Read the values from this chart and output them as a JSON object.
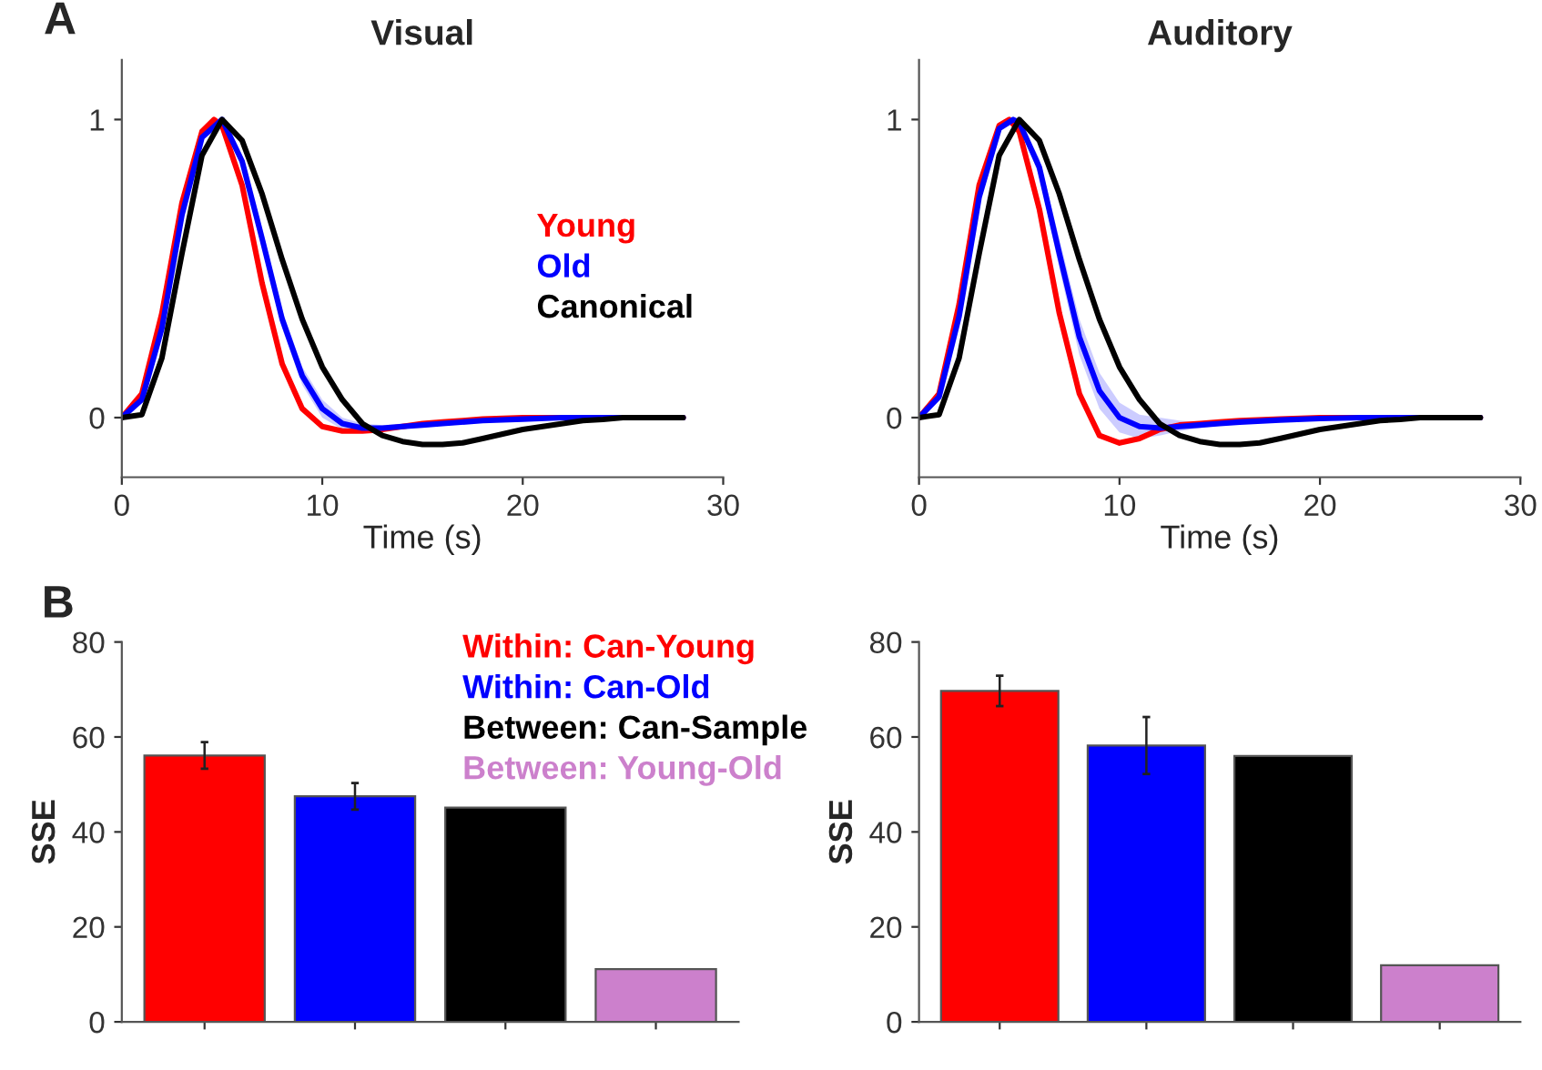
{
  "chart_data": [
    {
      "type": "line",
      "title": "Visual",
      "xlabel": "Time (s)",
      "xlim": [
        0,
        30
      ],
      "xticks": [
        0,
        10,
        20,
        30
      ],
      "ylim": [
        -0.2,
        1.2
      ],
      "yticks": [
        0,
        1
      ],
      "legend": "right",
      "grid": false,
      "annotations": [
        "A"
      ],
      "series": [
        {
          "name": "Young",
          "color": "#ff0000",
          "x": [
            0,
            1,
            2,
            3,
            4,
            4.6,
            5,
            6,
            7,
            8,
            9,
            10,
            11,
            12,
            13,
            14,
            15,
            16,
            17,
            18,
            20,
            28
          ],
          "values": [
            0,
            0.08,
            0.35,
            0.72,
            0.96,
            1.0,
            0.98,
            0.78,
            0.45,
            0.18,
            0.03,
            -0.03,
            -0.045,
            -0.045,
            -0.04,
            -0.03,
            -0.02,
            -0.015,
            -0.01,
            -0.005,
            0,
            0
          ]
        },
        {
          "name": "Old",
          "color": "#0000ff",
          "x": [
            0,
            1,
            2,
            3,
            4,
            5,
            6,
            7,
            8,
            9,
            10,
            11,
            12,
            13,
            14,
            15,
            16,
            18,
            20,
            22,
            28
          ],
          "values": [
            0,
            0.06,
            0.3,
            0.68,
            0.94,
            1.0,
            0.86,
            0.6,
            0.33,
            0.14,
            0.03,
            -0.02,
            -0.035,
            -0.035,
            -0.03,
            -0.025,
            -0.02,
            -0.01,
            -0.005,
            0,
            0
          ],
          "lower": [
            0,
            0.05,
            0.28,
            0.66,
            0.93,
            0.99,
            0.84,
            0.57,
            0.3,
            0.11,
            0.0,
            -0.04,
            -0.05,
            -0.045,
            -0.04,
            -0.03,
            -0.025,
            -0.015,
            -0.008,
            0,
            0
          ],
          "upper": [
            0,
            0.07,
            0.32,
            0.7,
            0.95,
            1.0,
            0.88,
            0.63,
            0.36,
            0.17,
            0.06,
            0.0,
            -0.02,
            -0.025,
            -0.02,
            -0.02,
            -0.015,
            -0.005,
            -0.002,
            0,
            0
          ]
        },
        {
          "name": "Canonical",
          "color": "#000000",
          "x": [
            0,
            1,
            2,
            3,
            4,
            5,
            6,
            7,
            8,
            9,
            10,
            11,
            12,
            13,
            14,
            15,
            16,
            17,
            18,
            19,
            20,
            21,
            22,
            23,
            24,
            25,
            28
          ],
          "values": [
            0,
            0.01,
            0.2,
            0.55,
            0.88,
            1.0,
            0.93,
            0.75,
            0.53,
            0.33,
            0.17,
            0.06,
            -0.02,
            -0.06,
            -0.08,
            -0.09,
            -0.09,
            -0.085,
            -0.07,
            -0.055,
            -0.04,
            -0.03,
            -0.02,
            -0.01,
            -0.006,
            0,
            0
          ]
        }
      ]
    },
    {
      "type": "line",
      "title": "Auditory",
      "xlabel": "Time (s)",
      "xlim": [
        0,
        30
      ],
      "xticks": [
        0,
        10,
        20,
        30
      ],
      "ylim": [
        -0.2,
        1.2
      ],
      "yticks": [
        0,
        1
      ],
      "grid": false,
      "series": [
        {
          "color": "#ff0000",
          "x": [
            0,
            1,
            2,
            3,
            4,
            4.5,
            5,
            6,
            7,
            8,
            9,
            10,
            11,
            12,
            13,
            14,
            15,
            16,
            18,
            20,
            28
          ],
          "values": [
            0,
            0.08,
            0.38,
            0.78,
            0.98,
            1.0,
            0.96,
            0.7,
            0.35,
            0.08,
            -0.06,
            -0.085,
            -0.07,
            -0.04,
            -0.025,
            -0.02,
            -0.015,
            -0.01,
            -0.005,
            0,
            0
          ]
        },
        {
          "color": "#0000ff",
          "x": [
            0,
            1,
            2,
            3,
            4,
            4.7,
            5,
            6,
            7,
            8,
            9,
            10,
            11,
            12,
            13,
            14,
            15,
            16,
            18,
            20,
            22,
            28
          ],
          "values": [
            0,
            0.07,
            0.34,
            0.74,
            0.97,
            1.0,
            0.99,
            0.84,
            0.55,
            0.27,
            0.09,
            0.0,
            -0.03,
            -0.035,
            -0.03,
            -0.025,
            -0.02,
            -0.015,
            -0.008,
            -0.003,
            0,
            0
          ],
          "lower": [
            0,
            0.06,
            0.32,
            0.72,
            0.96,
            0.99,
            0.98,
            0.81,
            0.5,
            0.21,
            0.03,
            -0.05,
            -0.07,
            -0.06,
            -0.045,
            -0.035,
            -0.025,
            -0.02,
            -0.01,
            -0.005,
            0,
            0
          ],
          "upper": [
            0,
            0.08,
            0.36,
            0.76,
            0.98,
            1.0,
            1.0,
            0.87,
            0.6,
            0.33,
            0.15,
            0.05,
            0.01,
            0.0,
            -0.01,
            -0.015,
            -0.015,
            -0.01,
            -0.006,
            -0.001,
            0,
            0
          ]
        },
        {
          "color": "#000000",
          "x": [
            0,
            1,
            2,
            3,
            4,
            5,
            6,
            7,
            8,
            9,
            10,
            11,
            12,
            13,
            14,
            15,
            16,
            17,
            18,
            19,
            20,
            21,
            22,
            23,
            24,
            25,
            28
          ],
          "values": [
            0,
            0.01,
            0.2,
            0.55,
            0.88,
            1.0,
            0.93,
            0.75,
            0.53,
            0.33,
            0.17,
            0.06,
            -0.02,
            -0.06,
            -0.08,
            -0.09,
            -0.09,
            -0.085,
            -0.07,
            -0.055,
            -0.04,
            -0.03,
            -0.02,
            -0.01,
            -0.006,
            0,
            0
          ]
        }
      ]
    },
    {
      "type": "bar",
      "ylabel": "SSE",
      "categories": [
        null,
        null,
        null,
        null
      ],
      "ylim": [
        0,
        80
      ],
      "yticks": [
        0,
        20,
        40,
        60,
        80
      ],
      "legend": "top right",
      "grid": false,
      "annotations": [
        "B"
      ],
      "series": [
        {
          "name": "Within: Can-Young",
          "color": "#ff0000",
          "values": [
            56.1,
            null,
            null,
            null
          ],
          "errors": [
            2.8,
            null,
            null,
            null
          ]
        },
        {
          "name": "Within: Can-Old",
          "color": "#0000ff",
          "values": [
            null,
            47.5,
            null,
            null
          ],
          "errors": [
            null,
            2.8,
            null,
            null
          ]
        },
        {
          "name": "Between: Can-Sample",
          "color": "#000000",
          "values": [
            null,
            null,
            45.1,
            null
          ]
        },
        {
          "name": "Between: Young-Old",
          "color": "#cc80cc",
          "values": [
            null,
            null,
            null,
            11.1
          ]
        }
      ]
    },
    {
      "type": "bar",
      "ylabel": "SSE",
      "categories": [
        null,
        null,
        null,
        null
      ],
      "ylim": [
        0,
        80
      ],
      "yticks": [
        0,
        20,
        40,
        60,
        80
      ],
      "grid": false,
      "series": [
        {
          "color": "#ff0000",
          "values": [
            69.7,
            null,
            null,
            null
          ],
          "errors": [
            3.2,
            null,
            null,
            null
          ]
        },
        {
          "color": "#0000ff",
          "values": [
            null,
            58.2,
            null,
            null
          ],
          "errors": [
            null,
            6.0,
            null,
            null
          ]
        },
        {
          "color": "#000000",
          "values": [
            null,
            null,
            56.0,
            null
          ]
        },
        {
          "color": "#cc80cc",
          "values": [
            null,
            null,
            null,
            11.9
          ]
        }
      ]
    }
  ]
}
